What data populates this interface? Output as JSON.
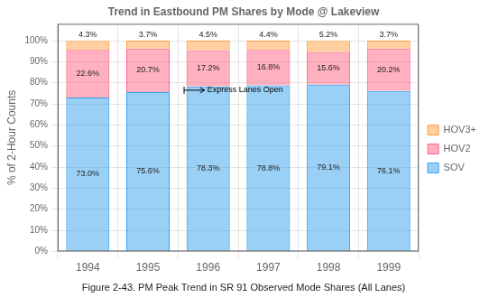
{
  "chart_data": {
    "type": "bar",
    "stacked": true,
    "title": "Trend in Eastbound PM Shares by Mode @ Lakeview",
    "ylabel": "% of 2-Hour Counts",
    "caption": "Figure 2-43. PM Peak Trend in SR 91 Observed Mode Shares (All Lanes)",
    "categories": [
      "1994",
      "1995",
      "1996",
      "1997",
      "1998",
      "1999"
    ],
    "series": [
      {
        "name": "SOV",
        "values": [
          73.0,
          75.6,
          78.3,
          78.8,
          79.1,
          76.1
        ],
        "value_labels": [
          "73.0%",
          "75.6%",
          "78.3%",
          "78.8%",
          "79.1%",
          "76.1%"
        ]
      },
      {
        "name": "HOV2",
        "values": [
          22.6,
          20.7,
          17.2,
          16.8,
          15.6,
          20.2
        ],
        "value_labels": [
          "22.6%",
          "20.7%",
          "17.2%",
          "16.8%",
          "15.6%",
          "20.2%"
        ]
      },
      {
        "name": "HOV3+",
        "values": [
          4.3,
          3.7,
          4.5,
          4.4,
          5.2,
          3.7
        ],
        "value_labels": [
          "4.3%",
          "3.7%",
          "4.5%",
          "4.4%",
          "5.2%",
          "3.7%"
        ]
      }
    ],
    "ylim": [
      0,
      108
    ],
    "yticks": [
      {
        "value": 0,
        "label": "0%"
      },
      {
        "value": 10,
        "label": "10%"
      },
      {
        "value": 20,
        "label": "20%"
      },
      {
        "value": 30,
        "label": "30%"
      },
      {
        "value": 40,
        "label": "40%"
      },
      {
        "value": 50,
        "label": "50%"
      },
      {
        "value": 60,
        "label": "60%"
      },
      {
        "value": 70,
        "label": "70%"
      },
      {
        "value": 80,
        "label": "80%"
      },
      {
        "value": 90,
        "label": "90%"
      },
      {
        "value": 100,
        "label": "100%"
      }
    ],
    "grid": true,
    "legend": "right",
    "data_labels": true,
    "annotations": [
      {
        "text": "Express Lanes Open",
        "x": "1996",
        "y": 76.5
      }
    ]
  }
}
